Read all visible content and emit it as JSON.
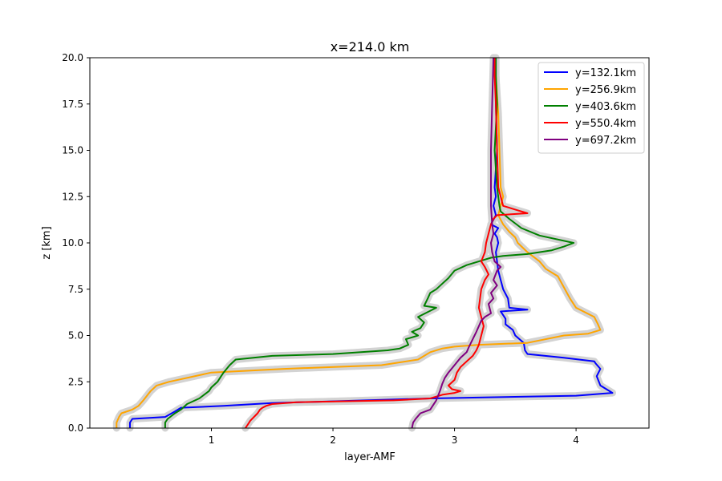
{
  "chart_data": {
    "type": "line",
    "title": "x=214.0 km",
    "xlabel": "layer-AMF",
    "ylabel": "z [km]",
    "xlim": [
      0.0,
      4.6
    ],
    "ylim": [
      0,
      20
    ],
    "xticks": [
      1,
      2,
      3,
      4
    ],
    "yticks": [
      0.0,
      2.5,
      5.0,
      7.5,
      10.0,
      12.5,
      15.0,
      17.5,
      20.0
    ],
    "grid": false,
    "legend_position": "top-right",
    "uncertainty_band_color": "#d3d3d3",
    "series": [
      {
        "name": "y=132.1km",
        "color": "#0000ff",
        "x": [
          0.33,
          0.33,
          0.35,
          0.62,
          0.7,
          0.75,
          1.1,
          1.5,
          2.8,
          4.0,
          4.2,
          4.3,
          4.2,
          4.17,
          4.2,
          4.16,
          4.15,
          3.9,
          3.6,
          3.58,
          3.57,
          3.5,
          3.48,
          3.42,
          3.42,
          3.4,
          3.38,
          3.6,
          3.45,
          3.44,
          3.4,
          3.38,
          3.36,
          3.35,
          3.34,
          3.36,
          3.35,
          3.33,
          3.36,
          3.3,
          3.34,
          3.32,
          3.34,
          3.33,
          3.35,
          3.34,
          3.34,
          3.34
        ],
        "y": [
          0.0,
          0.3,
          0.5,
          0.6,
          0.9,
          1.1,
          1.2,
          1.35,
          1.6,
          1.75,
          1.85,
          1.9,
          2.3,
          2.8,
          3.2,
          3.5,
          3.6,
          3.8,
          4.0,
          4.2,
          4.6,
          5.0,
          5.3,
          5.6,
          5.9,
          6.1,
          6.3,
          6.4,
          6.5,
          7.0,
          7.5,
          8.0,
          8.5,
          9.0,
          9.5,
          10.0,
          10.3,
          10.5,
          10.8,
          11.0,
          11.5,
          12.0,
          12.5,
          13.0,
          15.0,
          17.5,
          19.0,
          20.0
        ]
      },
      {
        "name": "y=256.9km",
        "color": "#ffa500",
        "x": [
          0.22,
          0.22,
          0.24,
          0.26,
          0.35,
          0.4,
          0.44,
          0.5,
          0.55,
          0.65,
          1.0,
          1.6,
          2.4,
          2.7,
          2.8,
          2.9,
          3.0,
          3.2,
          3.6,
          3.9,
          4.1,
          4.2,
          4.18,
          4.15,
          4.0,
          3.95,
          3.9,
          3.85,
          3.75,
          3.7,
          3.6,
          3.52,
          3.5,
          3.45,
          3.4,
          3.36,
          3.38,
          3.4,
          3.38,
          3.37,
          3.36,
          3.34,
          3.32
        ],
        "y": [
          0.0,
          0.3,
          0.6,
          0.8,
          1.0,
          1.2,
          1.5,
          2.0,
          2.3,
          2.5,
          3.0,
          3.2,
          3.4,
          3.7,
          4.1,
          4.3,
          4.4,
          4.5,
          4.6,
          5.0,
          5.1,
          5.3,
          5.6,
          6.0,
          6.5,
          7.0,
          7.6,
          8.2,
          8.6,
          9.0,
          9.5,
          10.0,
          10.3,
          10.6,
          11.0,
          11.5,
          12.0,
          12.5,
          13.0,
          15.0,
          17.0,
          19.0,
          20.0
        ]
      },
      {
        "name": "y=403.6km",
        "color": "#008000",
        "x": [
          0.62,
          0.62,
          0.64,
          0.7,
          0.75,
          0.8,
          0.9,
          0.98,
          1.0,
          1.05,
          1.08,
          1.1,
          1.15,
          1.2,
          1.5,
          2.0,
          2.45,
          2.55,
          2.62,
          2.6,
          2.7,
          2.65,
          2.72,
          2.75,
          2.7,
          2.85,
          2.75,
          2.78,
          2.8,
          2.85,
          2.9,
          2.95,
          3.0,
          3.1,
          3.2,
          3.3,
          3.4,
          3.6,
          3.8,
          3.9,
          3.98,
          3.7,
          3.55,
          3.45,
          3.38,
          3.37,
          3.36,
          3.35,
          3.34,
          3.33,
          3.35,
          3.34,
          3.34
        ],
        "y": [
          0.0,
          0.3,
          0.5,
          0.8,
          1.0,
          1.3,
          1.6,
          2.0,
          2.2,
          2.5,
          2.8,
          3.0,
          3.4,
          3.7,
          3.9,
          4.0,
          4.2,
          4.3,
          4.5,
          4.8,
          5.0,
          5.2,
          5.4,
          5.7,
          6.0,
          6.5,
          6.6,
          7.0,
          7.3,
          7.5,
          7.8,
          8.1,
          8.5,
          8.8,
          9.0,
          9.2,
          9.3,
          9.4,
          9.6,
          9.8,
          10.0,
          10.4,
          10.8,
          11.3,
          11.7,
          12.0,
          12.5,
          13.0,
          14.0,
          15.0,
          17.5,
          19.0,
          20.0
        ]
      },
      {
        "name": "y=550.4km",
        "color": "#ff0000",
        "x": [
          1.28,
          1.3,
          1.32,
          1.35,
          1.38,
          1.4,
          1.42,
          1.45,
          1.5,
          1.7,
          2.5,
          2.8,
          2.9,
          3.0,
          3.05,
          2.98,
          2.95,
          3.0,
          3.02,
          3.05,
          3.1,
          3.15,
          3.18,
          3.2,
          3.22,
          3.24,
          3.22,
          3.2,
          3.21,
          3.22,
          3.25,
          3.28,
          3.25,
          3.22,
          3.25,
          3.26,
          3.28,
          3.3,
          3.32,
          3.35,
          3.6,
          3.5,
          3.4,
          3.38,
          3.36,
          3.35,
          3.34,
          3.33,
          3.33
        ],
        "y": [
          0.0,
          0.2,
          0.4,
          0.6,
          0.8,
          1.0,
          1.1,
          1.2,
          1.3,
          1.4,
          1.5,
          1.6,
          1.8,
          1.9,
          2.0,
          2.1,
          2.3,
          2.6,
          3.0,
          3.3,
          3.6,
          3.9,
          4.2,
          4.5,
          5.0,
          5.5,
          6.0,
          6.5,
          7.0,
          7.5,
          8.0,
          8.3,
          8.7,
          9.0,
          9.5,
          10.0,
          10.5,
          11.0,
          11.3,
          11.5,
          11.6,
          11.8,
          12.0,
          12.5,
          13.0,
          15.0,
          17.5,
          19.0,
          20.0
        ]
      },
      {
        "name": "y=697.2km",
        "color": "#800080",
        "x": [
          2.65,
          2.66,
          2.68,
          2.72,
          2.8,
          2.85,
          2.88,
          2.9,
          2.92,
          2.95,
          3.0,
          3.05,
          3.1,
          3.12,
          3.15,
          3.18,
          3.2,
          3.22,
          3.25,
          3.3,
          3.28,
          3.32,
          3.3,
          3.35,
          3.32,
          3.35,
          3.38,
          3.33,
          3.31,
          3.3,
          3.32,
          3.31,
          3.3,
          3.3,
          3.3,
          3.31,
          3.32
        ],
        "y": [
          0.0,
          0.3,
          0.5,
          0.8,
          1.0,
          1.5,
          2.0,
          2.4,
          2.7,
          3.0,
          3.4,
          3.8,
          4.1,
          4.4,
          4.8,
          5.2,
          5.5,
          5.8,
          6.0,
          6.2,
          6.7,
          7.0,
          7.3,
          7.7,
          8.0,
          8.5,
          8.7,
          9.0,
          9.5,
          10.0,
          10.5,
          11.0,
          12.0,
          13.0,
          15.0,
          17.5,
          20.0
        ]
      }
    ]
  }
}
